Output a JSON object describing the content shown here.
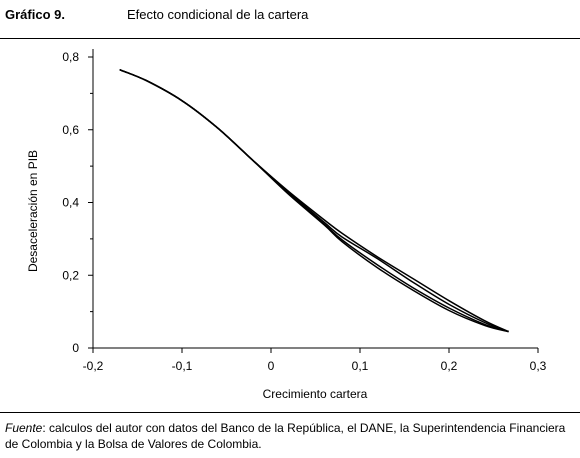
{
  "header": {
    "label": "Gráfico 9.",
    "title": "Efecto condicional de la cartera"
  },
  "source": {
    "prefix": "Fuente",
    "text": ": calculos del autor con datos del Banco de la República, el DANE, la Superintendencia Financiera de Colombia y la Bolsa de Valores de Colombia."
  },
  "chart_data": {
    "type": "line",
    "title": "Efecto condicional de la cartera",
    "xlabel": "Crecimiento cartera",
    "ylabel": "Desaceleración en PIB",
    "xlim": [
      -0.2,
      0.3
    ],
    "ylim": [
      0,
      0.8
    ],
    "x_ticks": [
      -0.2,
      -0.1,
      0,
      0.1,
      0.2,
      0.3
    ],
    "x_tick_labels": [
      "-0,2",
      "-0,1",
      "0",
      "0,1",
      "0,2",
      "0,3"
    ],
    "y_ticks": [
      0,
      0.2,
      0.4,
      0.6,
      0.8
    ],
    "y_tick_labels": [
      "0",
      "0,2",
      "0,4",
      "0,6",
      "0,8"
    ],
    "grid": false,
    "legend": "none",
    "series": [
      {
        "x": [
          -0.17,
          -0.14,
          -0.1,
          -0.06,
          -0.02,
          0.02,
          0.06,
          0.08,
          0.12,
          0.16,
          0.2,
          0.24,
          0.267
        ],
        "y": [
          0.765,
          0.735,
          0.68,
          0.605,
          0.515,
          0.425,
          0.34,
          0.297,
          0.228,
          0.165,
          0.11,
          0.065,
          0.045
        ]
      },
      {
        "x": [
          -0.17,
          -0.14,
          -0.1,
          -0.06,
          -0.02,
          0.02,
          0.06,
          0.08,
          0.12,
          0.16,
          0.2,
          0.24,
          0.267
        ],
        "y": [
          0.765,
          0.735,
          0.68,
          0.605,
          0.515,
          0.43,
          0.352,
          0.315,
          0.25,
          0.19,
          0.13,
          0.075,
          0.045
        ]
      },
      {
        "x": [
          -0.17,
          -0.14,
          -0.1,
          -0.06,
          -0.02,
          0.02,
          0.06,
          0.08,
          0.12,
          0.16,
          0.2,
          0.24,
          0.267
        ],
        "y": [
          0.765,
          0.735,
          0.68,
          0.605,
          0.515,
          0.428,
          0.345,
          0.305,
          0.245,
          0.18,
          0.12,
          0.07,
          0.045
        ]
      },
      {
        "x": [
          -0.17,
          -0.14,
          -0.1,
          -0.06,
          -0.02,
          0.02,
          0.06,
          0.08,
          0.12,
          0.16,
          0.2,
          0.24,
          0.267
        ],
        "y": [
          0.765,
          0.735,
          0.68,
          0.605,
          0.515,
          0.422,
          0.338,
          0.292,
          0.22,
          0.158,
          0.103,
          0.062,
          0.045
        ]
      }
    ]
  }
}
